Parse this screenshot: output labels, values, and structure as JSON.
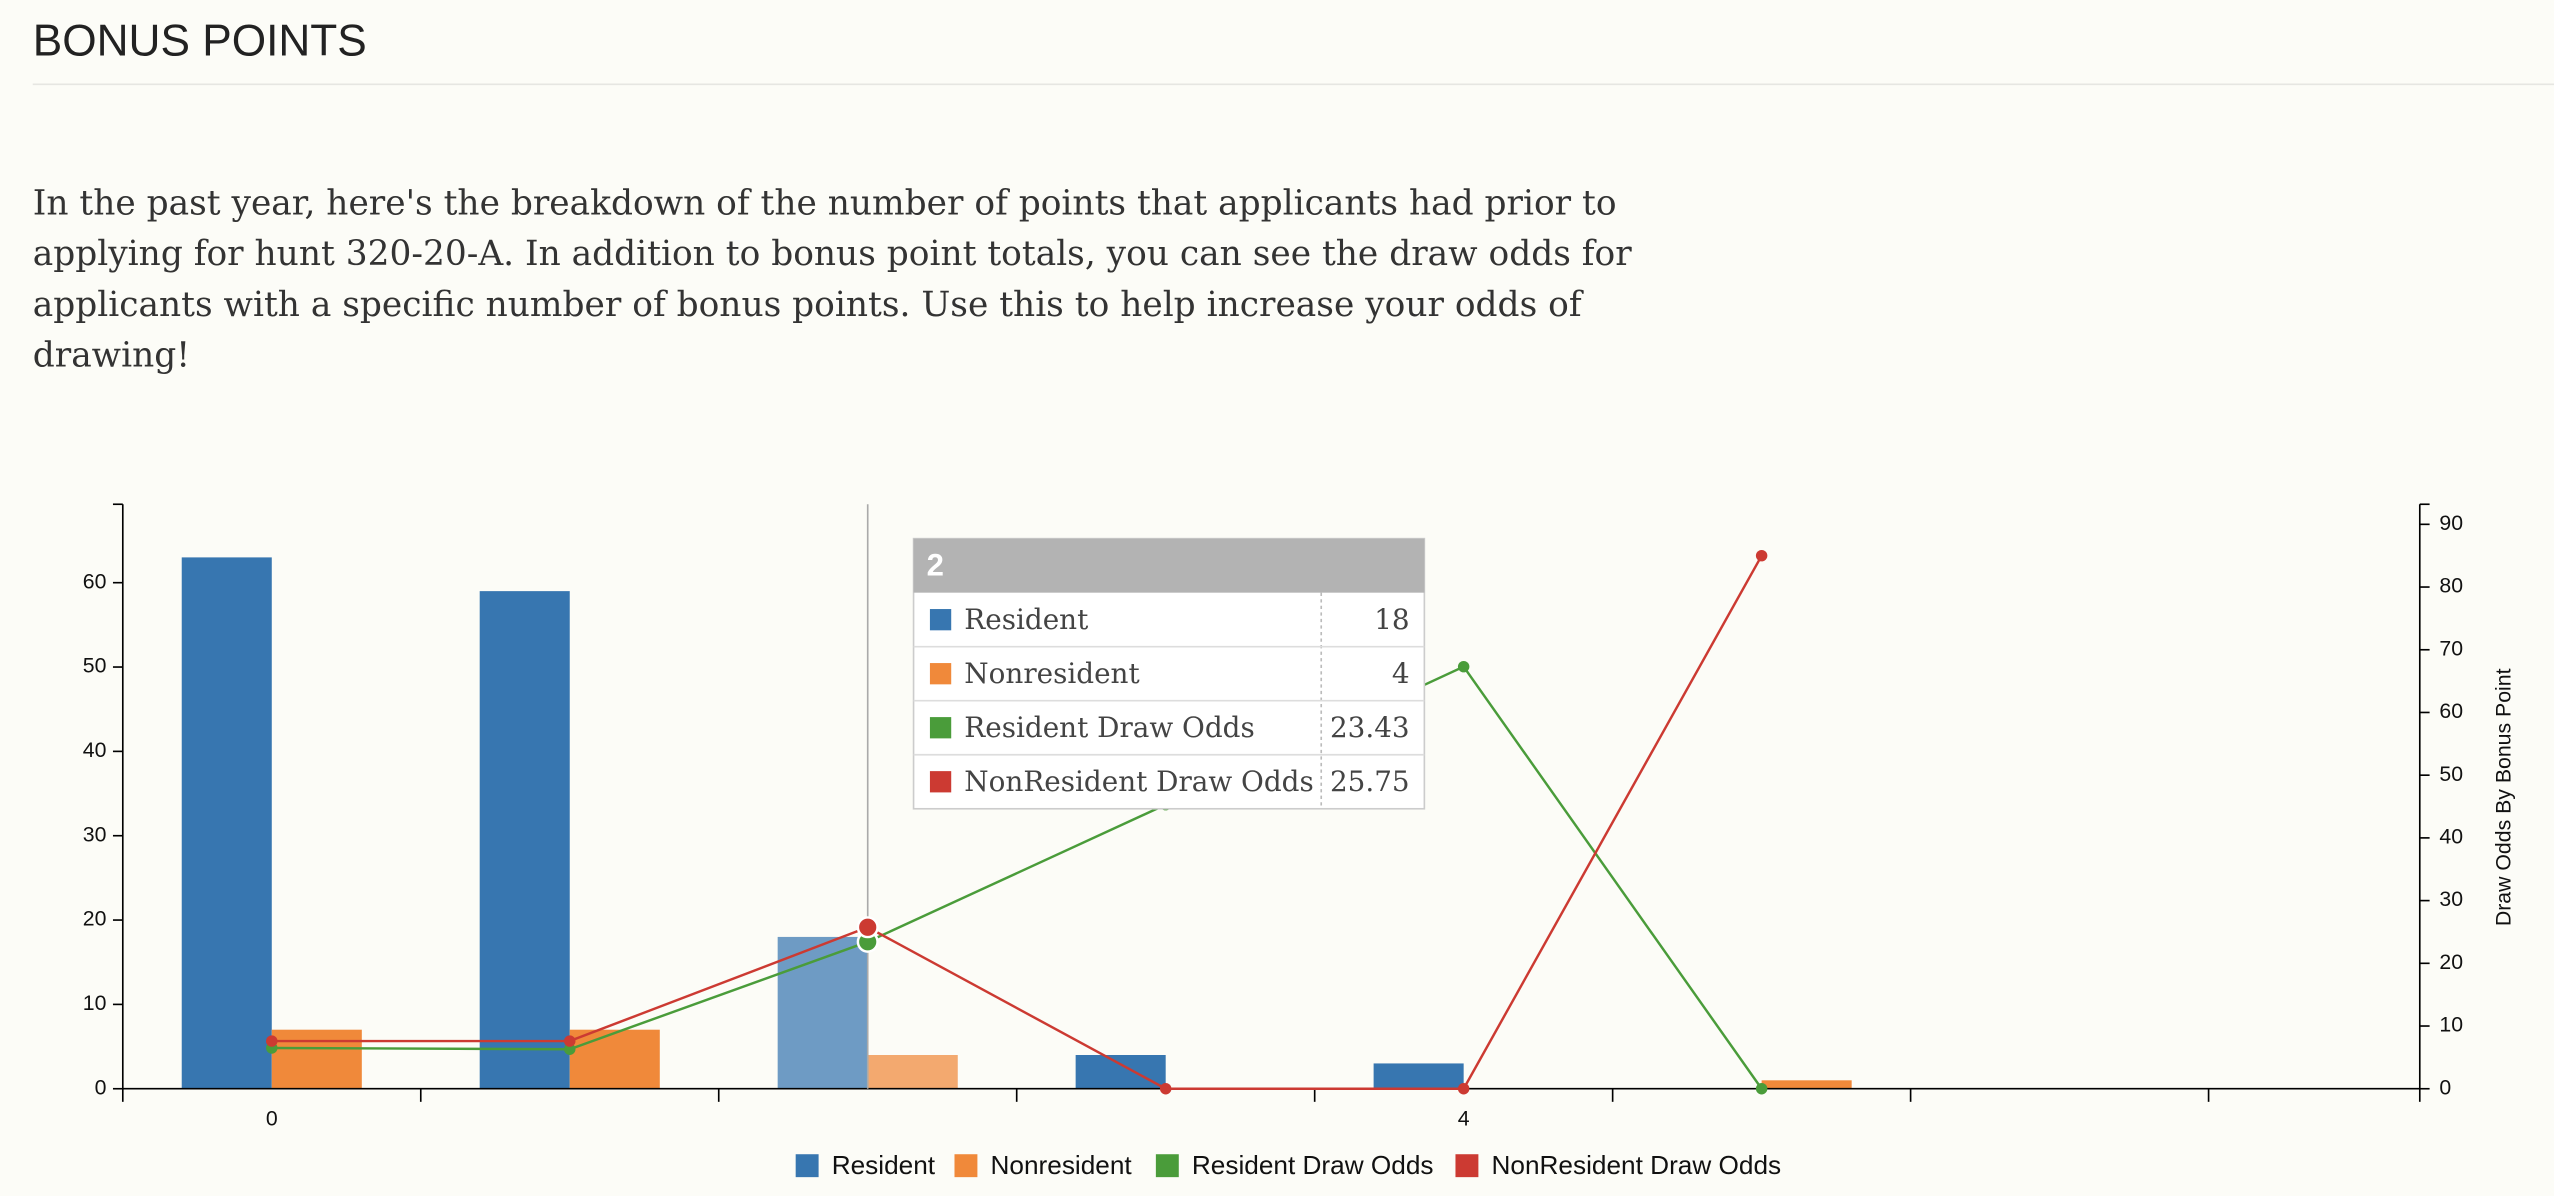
{
  "header": {
    "title": "BONUS POINTS"
  },
  "intro": "In the past year, here's the breakdown of the number of points that applicants had prior to applying for hunt 320-20-A. In addition to bonus point totals, you can see the draw odds for applicants with a specific number of bonus points. Use this to help increase your odds of drawing!",
  "chart_data": {
    "type": "bar",
    "y2label": "Draw Odds By Bonus Point",
    "categories": [
      "0",
      null,
      null,
      null,
      "4",
      null,
      null,
      null
    ],
    "series": [
      {
        "name": "Resident",
        "color": "#3776b0",
        "type": "bar",
        "values": [
          63,
          59,
          18,
          4,
          3,
          0,
          null,
          null
        ]
      },
      {
        "name": "Nonresident",
        "color": "#f0893a",
        "type": "bar",
        "values": [
          7,
          7,
          4,
          0,
          0,
          1,
          null,
          null
        ]
      },
      {
        "name": "Resident Draw Odds",
        "color": "#4a9c3a",
        "type": "line",
        "axis": "y2",
        "values": [
          6.5,
          6.3,
          23.43,
          45.3,
          67.3,
          0,
          null,
          null
        ]
      },
      {
        "name": "NonResident Draw Odds",
        "color": "#cc3a32",
        "type": "line",
        "axis": "y2",
        "values": [
          7.6,
          7.6,
          25.75,
          0,
          0,
          85,
          null,
          null
        ]
      }
    ],
    "ylim": [
      0,
      69.3
    ],
    "yticks": [
      0,
      10,
      20,
      30,
      40,
      50,
      60
    ],
    "y2lim": [
      0,
      93.2
    ],
    "y2ticks": [
      0,
      10,
      20,
      30,
      40,
      50,
      60,
      70,
      80,
      90
    ],
    "tooltip": {
      "title": "2"
    }
  }
}
